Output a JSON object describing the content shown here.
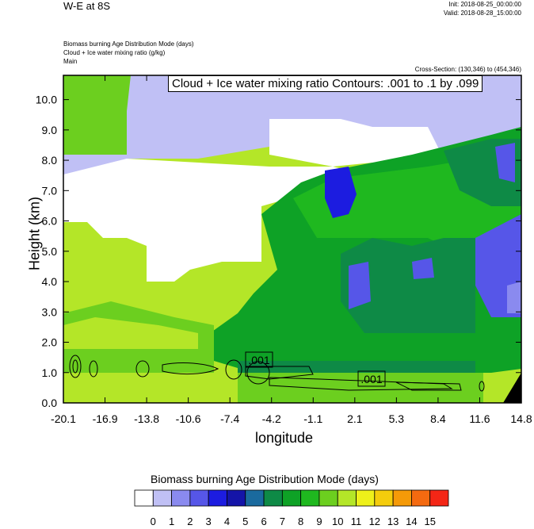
{
  "header": {
    "title": "W-E at 8S",
    "init": "Init: 2018-08-25_00:00:00",
    "valid": "Valid: 2018-08-28_15:00:00",
    "field_lines": [
      "Biomass burning Age Distribution Mode    (days)",
      "Cloud + Ice water mixing ratio    (g/kg)",
      "Main"
    ],
    "cross_section": "Cross-Section: (130,346) to (454,346)",
    "contour_label": "Cloud + Ice water mixing ratio Contours: .001 to .1 by .099"
  },
  "chart_data": {
    "type": "heatmap",
    "xlabel": "longitude",
    "ylabel": "Height (km)",
    "xlim": [
      -20.1,
      14.8
    ],
    "ylim": [
      0.0,
      10.8
    ],
    "x_ticks": [
      "-20.1",
      "-16.9",
      "-13.8",
      "-10.6",
      "-7.4",
      "-4.2",
      "-1.1",
      "2.1",
      "5.3",
      "8.4",
      "11.6",
      "14.8"
    ],
    "y_ticks": [
      "0.0",
      "1.0",
      "2.0",
      "3.0",
      "4.0",
      "5.0",
      "6.0",
      "7.0",
      "8.0",
      "9.0",
      "10.0"
    ],
    "contour_labels": [
      ".001",
      ".001"
    ],
    "colorbar": {
      "title": "Biomass burning Age Distribution Mode  (days)",
      "labels": [
        "0",
        "1",
        "2",
        "3",
        "4",
        "5",
        "6",
        "7",
        "8",
        "9",
        "10",
        "11",
        "12",
        "13",
        "14",
        "15"
      ],
      "colors": [
        "#ffffff",
        "#c0c0f5",
        "#8a8aef",
        "#5656e8",
        "#1c1ce0",
        "#1414a8",
        "#1a6a9e",
        "#0e8a46",
        "#0ea226",
        "#1fb81f",
        "#6ccf1f",
        "#b4e628",
        "#eef01a",
        "#f4cc0c",
        "#f59a08",
        "#f46a10",
        "#f42616"
      ]
    },
    "legend": "colorbar-bottom",
    "grid": false
  }
}
